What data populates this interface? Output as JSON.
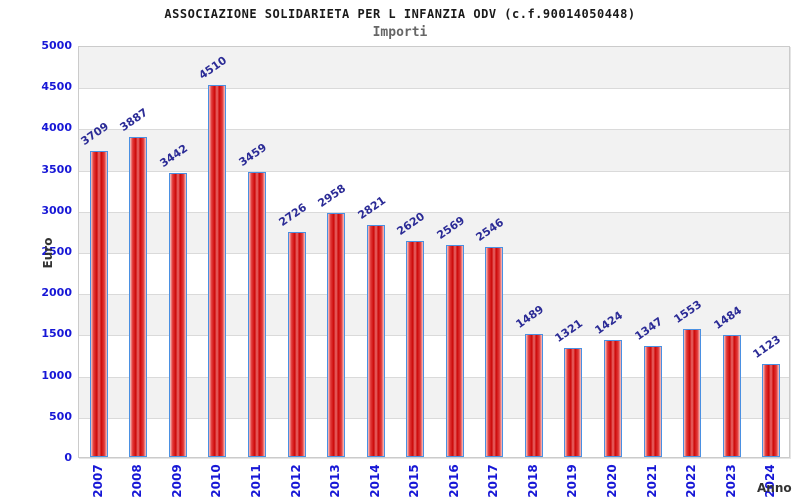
{
  "header": {
    "title": "ASSOCIAZIONE SOLIDARIETA PER L INFANZIA ODV (c.f.90014050448)",
    "subtitle": "Importi"
  },
  "chart_data": {
    "type": "bar",
    "title": "ASSOCIAZIONE SOLIDARIETA PER L INFANZIA ODV (c.f.90014050448)",
    "subtitle": "Importi",
    "xlabel": "Anno",
    "ylabel": "Euro",
    "categories": [
      "2007",
      "2008",
      "2009",
      "2010",
      "2011",
      "2012",
      "2013",
      "2014",
      "2015",
      "2016",
      "2017",
      "2018",
      "2019",
      "2020",
      "2021",
      "2022",
      "2023",
      "2024"
    ],
    "values": [
      3709,
      3887,
      3442,
      4510,
      3459,
      2726,
      2958,
      2821,
      2620,
      2569,
      2546,
      1489,
      1321,
      1424,
      1347,
      1553,
      1484,
      1123
    ],
    "ylim": [
      0,
      5000
    ],
    "ytick_step": 500,
    "grid": true,
    "legend_position": "none",
    "band_color": "#f2f2f2",
    "gridline_color": "#dadada",
    "bar_border_color": "#4a90e2",
    "bar_fill_color": "#cd0a0a",
    "value_label_color": "#2b2b96",
    "tick_label_color": "#1717d6",
    "axis_title_color": "#333333"
  }
}
